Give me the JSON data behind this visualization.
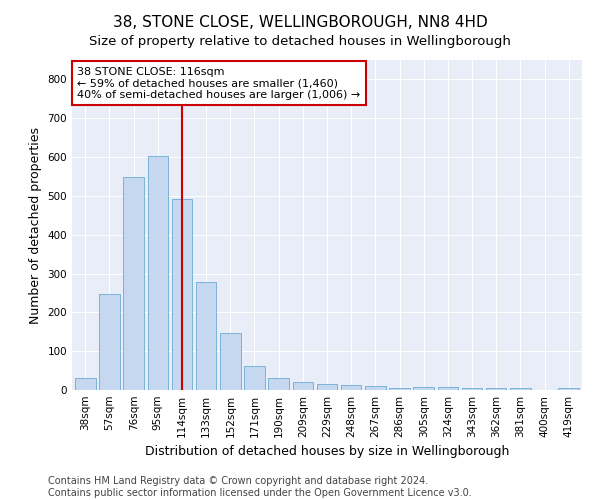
{
  "title": "38, STONE CLOSE, WELLINGBOROUGH, NN8 4HD",
  "subtitle": "Size of property relative to detached houses in Wellingborough",
  "xlabel": "Distribution of detached houses by size in Wellingborough",
  "ylabel": "Number of detached properties",
  "categories": [
    "38sqm",
    "57sqm",
    "76sqm",
    "95sqm",
    "114sqm",
    "133sqm",
    "152sqm",
    "171sqm",
    "190sqm",
    "209sqm",
    "229sqm",
    "248sqm",
    "267sqm",
    "286sqm",
    "305sqm",
    "324sqm",
    "343sqm",
    "362sqm",
    "381sqm",
    "400sqm",
    "419sqm"
  ],
  "values": [
    32,
    248,
    548,
    604,
    493,
    277,
    147,
    62,
    32,
    20,
    15,
    12,
    10,
    6,
    8,
    8,
    5,
    5,
    5,
    1,
    5
  ],
  "bar_color": "#c5d8ef",
  "bar_edge_color": "#6aacd4",
  "vline_x": 4,
  "vline_color": "#cc0000",
  "annotation_text": "38 STONE CLOSE: 116sqm\n← 59% of detached houses are smaller (1,460)\n40% of semi-detached houses are larger (1,006) →",
  "annotation_box_color": "#ffffff",
  "annotation_box_edge_color": "#cc0000",
  "ylim": [
    0,
    850
  ],
  "yticks": [
    0,
    100,
    200,
    300,
    400,
    500,
    600,
    700,
    800
  ],
  "plot_bg_color": "#e8edf7",
  "footer": "Contains HM Land Registry data © Crown copyright and database right 2024.\nContains public sector information licensed under the Open Government Licence v3.0.",
  "title_fontsize": 11,
  "subtitle_fontsize": 9.5,
  "xlabel_fontsize": 9,
  "ylabel_fontsize": 9,
  "tick_fontsize": 7.5,
  "annotation_fontsize": 8,
  "footer_fontsize": 7
}
